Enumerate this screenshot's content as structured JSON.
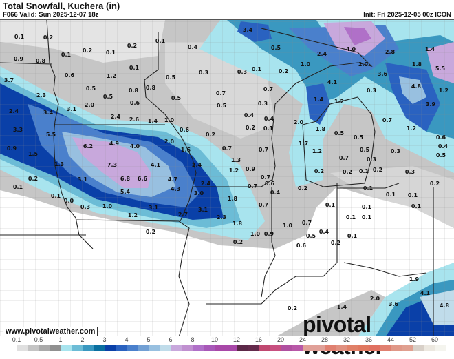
{
  "header": {
    "title": "Total Snowfall, Kuchera (in)",
    "valid": "F066 Valid: Sun 2025-12-07 18z",
    "init": "Init: Fri 2025-12-05 00z ICON"
  },
  "footer": {
    "website": "www.pivotalweather.com",
    "brand": "pivotal weather"
  },
  "legend": {
    "ticks": [
      "0.1",
      "0.5",
      "1",
      "2",
      "3",
      "4",
      "5",
      "6",
      "8",
      "10",
      "12",
      "16",
      "20",
      "24",
      "28",
      "32",
      "36",
      "44",
      "52",
      "60"
    ],
    "colors": [
      "#ffffff",
      "#e0e0e0",
      "#c4c4c4",
      "#aaaaaa",
      "#909090",
      "#a8e4ee",
      "#6cbcd6",
      "#3a98c0",
      "#0a6fa0",
      "#0a40a8",
      "#2a62c0",
      "#4a80cc",
      "#72a0d4",
      "#98c0e0",
      "#c0dcea",
      "#c8a8dc",
      "#c090d0",
      "#b070c8",
      "#a858b8",
      "#a848a8",
      "#a848a8",
      "#5c2848",
      "#642a4c",
      "#c04870",
      "#c85080",
      "#b050a0",
      "#b858a8",
      "#e0a098",
      "#e0a098",
      "#e08070",
      "#e09080",
      "#e08068",
      "#e07860",
      "#e07060",
      "#e08070",
      "#e09888",
      "#e0a090",
      "#d8d0c8",
      "#ece8e0",
      "#f4f4ee"
    ]
  },
  "map": {
    "labels": [
      "0.1",
      "0.2",
      "0.1",
      "0.2",
      "0.1",
      "0.2",
      "0.1",
      "0.4",
      "3.4",
      "0.9",
      "0.8",
      "0.6",
      "1.2",
      "0.1",
      "0.5",
      "0.3",
      "0.3",
      "0.5",
      "2.4",
      "4.0",
      "2.8",
      "1.4",
      "3.7",
      "0.5",
      "0.8",
      "0.8",
      "0.5",
      "0.5",
      "0.7",
      "1.0",
      "0.1",
      "0.2",
      "2.0",
      "1.8",
      "5.5",
      "3.6",
      "4.1",
      "4.8",
      "1.2",
      "0.3",
      "0.7",
      "2.3",
      "2.0",
      "0.6",
      "0.5",
      "1.4",
      "1.2",
      "3.9",
      "3.1",
      "2.4",
      "3.4",
      "2.4",
      "2.6",
      "1.4",
      "1.0",
      "0.6",
      "0.3",
      "0.4",
      "0.4",
      "0.2",
      "0.1",
      "2.0",
      "1.8",
      "0.5",
      "0.7",
      "1.2",
      "0.6",
      "0.4",
      "0.5",
      "3.3",
      "5.5",
      "0.9",
      "1.5",
      "6.2",
      "4.9",
      "4.0",
      "2.0",
      "0.2",
      "0.7",
      "0.7",
      "0.5",
      "0.5",
      "0.3",
      "0.3",
      "1.6",
      "1.3",
      "7.3",
      "4.1",
      "1.3",
      "1.7",
      "1.2",
      "0.7",
      "0.2",
      "0.2",
      "0.1",
      "0.2",
      "0.3",
      "0.2",
      "2.4",
      "0.2",
      "3.1",
      "6.8",
      "6.6",
      "4.7",
      "2.4",
      "1.2",
      "0.9",
      "0.7",
      "0.7",
      "0.6",
      "0.4",
      "0.2",
      "0.1",
      "0.1",
      "0.1",
      "0.1",
      "5.4",
      "4.3",
      "3.0",
      "1.8",
      "0.1",
      "0.0",
      "0.3",
      "1.0",
      "3.1",
      "1.2",
      "2.7",
      "3.1",
      "2.3",
      "0.7",
      "0.1",
      "0.1",
      "0.1",
      "0.1",
      "0.1",
      "1.8",
      "1.0",
      "0.7",
      "0.4",
      "0.2",
      "1.0",
      "0.9",
      "0.5",
      "0.1",
      "0.2",
      "0.6",
      "0.2",
      "1.9",
      "4.1",
      "2.0",
      "3.6",
      "4.8",
      "1.4",
      "0.2"
    ]
  }
}
